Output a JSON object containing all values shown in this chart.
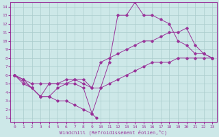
{
  "xlabel": "Windchill (Refroidissement éolien,°C)",
  "bg_color": "#cde8e8",
  "line_color": "#993399",
  "grid_color": "#aacccc",
  "xlim": [
    -0.5,
    23.5
  ],
  "ylim": [
    0.5,
    14.5
  ],
  "xticks": [
    0,
    1,
    2,
    3,
    4,
    5,
    6,
    7,
    8,
    9,
    10,
    11,
    12,
    13,
    14,
    15,
    16,
    17,
    18,
    19,
    20,
    21,
    22,
    23
  ],
  "yticks": [
    1,
    2,
    3,
    4,
    5,
    6,
    7,
    8,
    9,
    10,
    11,
    12,
    13,
    14
  ],
  "series": [
    {
      "x": [
        0,
        1,
        2,
        3,
        4,
        5,
        6,
        7,
        8,
        9,
        10,
        11,
        12,
        13,
        14,
        15,
        16,
        17,
        18,
        19,
        20,
        21,
        22,
        23
      ],
      "y": [
        6,
        5,
        4.5,
        3.5,
        5,
        5,
        5,
        5,
        4.5,
        1.5,
        4.5,
        7.5,
        13,
        13,
        14.5,
        13,
        13,
        12.5,
        12,
        10,
        9.5,
        8.5,
        8.5,
        8
      ]
    },
    {
      "x": [
        0,
        1,
        2,
        3,
        4,
        5,
        6,
        7,
        8,
        9,
        10,
        11,
        12,
        13,
        14,
        15,
        16,
        17,
        18,
        19,
        20,
        21,
        22,
        23
      ],
      "y": [
        6,
        5.5,
        5,
        5,
        5,
        5,
        5.5,
        5.5,
        5,
        4.5,
        7.5,
        8,
        8.5,
        9,
        9.5,
        10,
        10,
        10.5,
        11,
        11,
        11.5,
        9.5,
        8.5,
        8
      ]
    },
    {
      "x": [
        0,
        1,
        2,
        3,
        4,
        5,
        6,
        7,
        8,
        9,
        10,
        11,
        12,
        13,
        14,
        15,
        16,
        17,
        18,
        19,
        20,
        21,
        22,
        23
      ],
      "y": [
        6,
        5.5,
        4.5,
        3.5,
        3.5,
        4.5,
        5,
        5.5,
        5.5,
        4.5,
        4.5,
        5,
        5.5,
        6,
        6.5,
        7,
        7.5,
        7.5,
        7.5,
        8,
        8,
        8,
        8,
        8
      ]
    },
    {
      "x": [
        0,
        2,
        3,
        4,
        5,
        6,
        7,
        8,
        9,
        9.5
      ],
      "y": [
        6,
        4.5,
        3.5,
        3.5,
        3.0,
        3.0,
        2.5,
        2.0,
        1.5,
        1.0
      ]
    }
  ]
}
